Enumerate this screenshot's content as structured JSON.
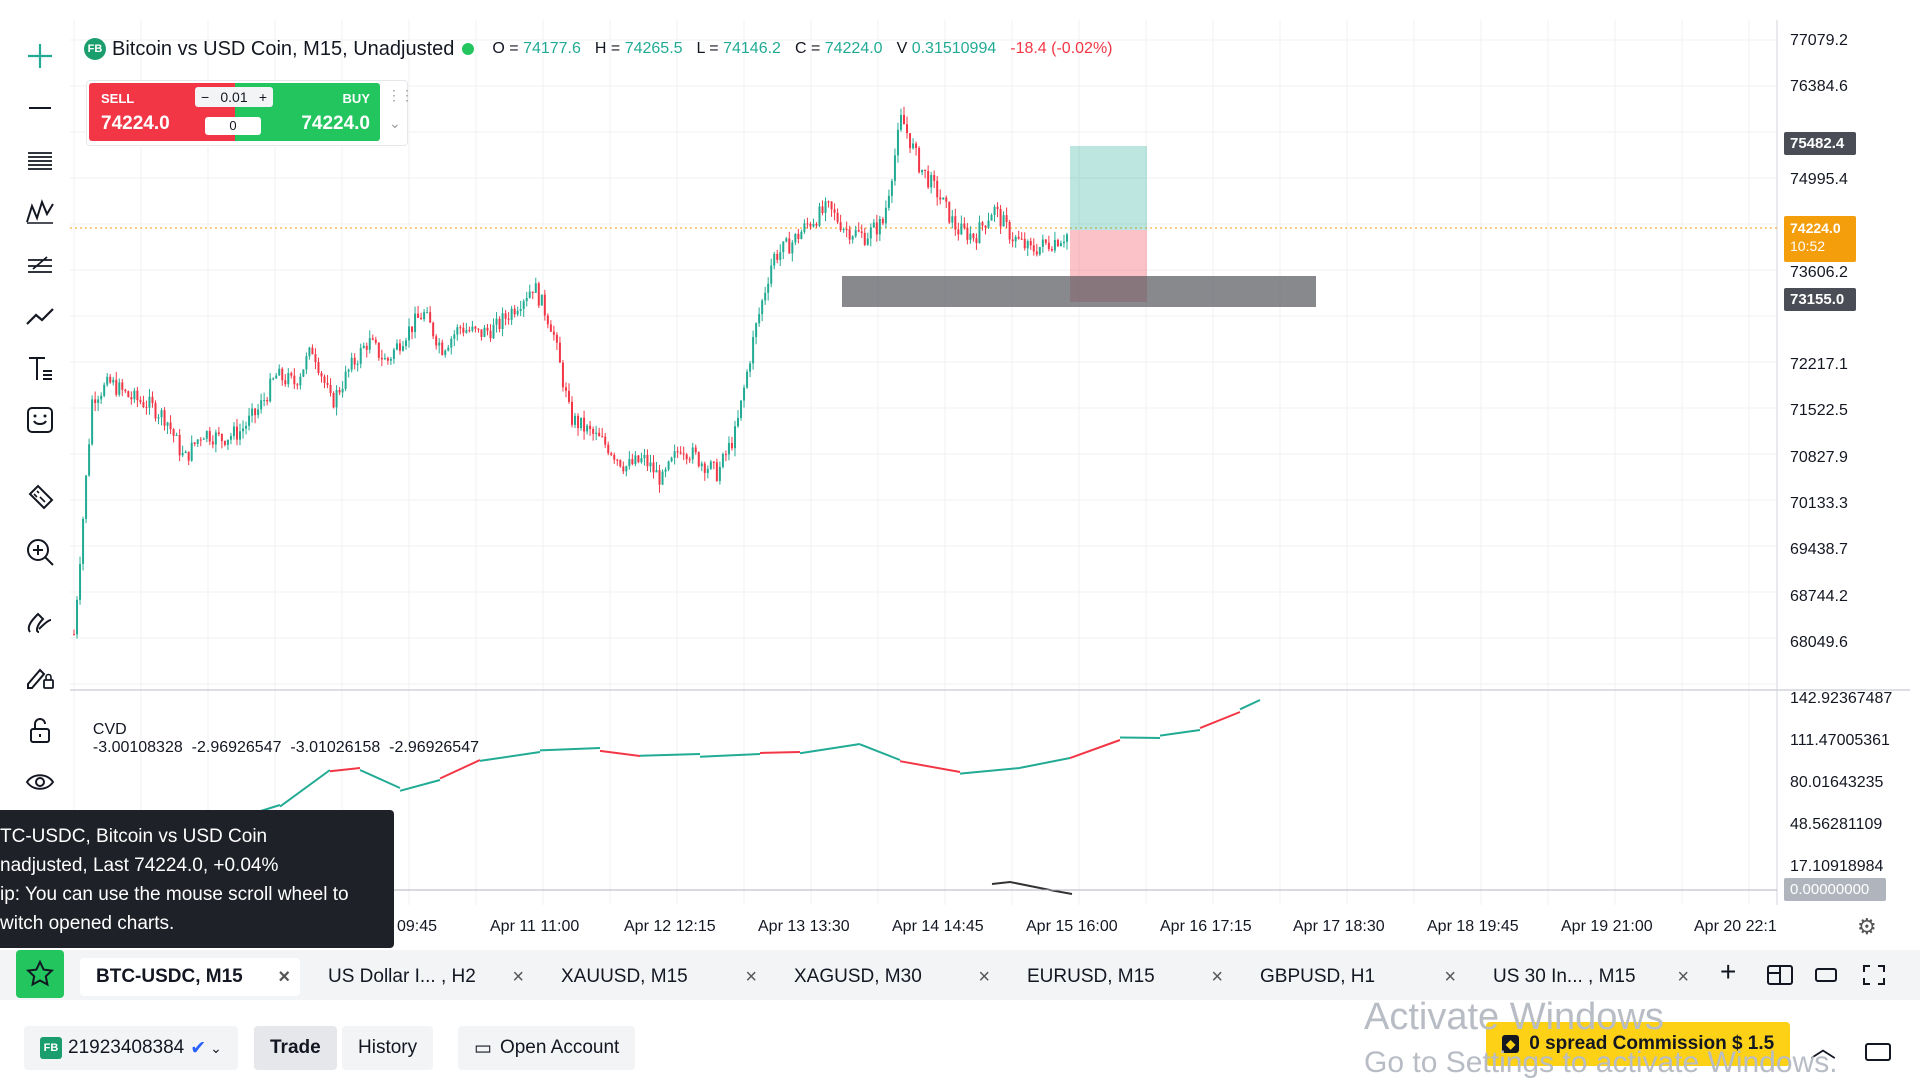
{
  "header": {
    "badge": "FB",
    "title": "Bitcoin vs USD Coin, M15, Unadjusted",
    "ohlc": [
      {
        "label": "O =",
        "value": "74177.6"
      },
      {
        "label": "H =",
        "value": "74265.5"
      },
      {
        "label": "L =",
        "value": "74146.2"
      },
      {
        "label": "C =",
        "value": "74224.0"
      },
      {
        "label": "V",
        "value": "0.31510994"
      }
    ],
    "change": "-18.4 (-0.02%)"
  },
  "trade": {
    "sell_label": "SELL",
    "sell_price": "74224.0",
    "buy_label": "BUY",
    "buy_price": "74224.0",
    "lot": "0.01",
    "lot_minus": "−",
    "lot_plus": "+",
    "spread_input": "0"
  },
  "price_axis": {
    "ticks": [
      "77079.2",
      "76384.6",
      "74995.4",
      "73606.2",
      "72217.1",
      "71522.5",
      "70827.9",
      "70133.3",
      "69438.7",
      "68744.2",
      "68049.6"
    ],
    "tag_top": "75482.4",
    "tag_current": "74224.0",
    "tag_countdown": "10:52",
    "tag_level": "73155.0"
  },
  "indicator": {
    "name": "CVD",
    "values": "-3.00108328  -2.96926547  -3.01026158  -2.96926547",
    "ticks": [
      "142.92367487",
      "111.47005361",
      "80.01643235",
      "48.56281109",
      "17.10918984"
    ],
    "tag_zero": "0.00000000"
  },
  "time_axis": [
    "09:45",
    "Apr 11 11:00",
    "Apr 12 12:15",
    "Apr 13 13:30",
    "Apr 14 14:45",
    "Apr 15 16:00",
    "Apr 16 17:15",
    "Apr 17 18:30",
    "Apr 18 19:45",
    "Apr 19 21:00",
    "Apr 20 22:1"
  ],
  "tooltip": {
    "line1": "TC-USDC, Bitcoin vs USD Coin",
    "line2": "nadjusted, Last 74224.0, +0.04%",
    "line3": "ip: You can use the mouse scroll wheel to",
    "line4": "witch opened charts."
  },
  "tabs": [
    {
      "label": "BTC-USDC, M15"
    },
    {
      "label": "US Dollar I... , H2"
    },
    {
      "label": "XAUUSD, M15"
    },
    {
      "label": "XAGUSD, M30"
    },
    {
      "label": "EURUSD, M15"
    },
    {
      "label": "GBPUSD, H1"
    },
    {
      "label": "US 30 In... , M15"
    }
  ],
  "footer": {
    "badge": "FB",
    "account": "21923408384",
    "trade": "Trade",
    "history": "History",
    "open_account": "Open Account",
    "promo": "0 spread Commission $ 1.5"
  },
  "watermark": {
    "line1": "Activate Windows",
    "line2": "Go to Settings to activate Windows."
  },
  "colors": {
    "up": "#22ab94",
    "down": "#f23645",
    "accent_green": "#22c55e",
    "current_price_tag": "#f59e0b",
    "tooltip_bg": "#1f2128"
  },
  "chart_data": {
    "type": "candlestick",
    "title": "Bitcoin vs USD Coin, M15, Unadjusted",
    "y_range": [
      67700,
      77300
    ],
    "close_path": [
      68500,
      71900,
      72100,
      71900,
      71800,
      71600,
      71000,
      71400,
      71300,
      71400,
      71700,
      72200,
      72100,
      72600,
      71800,
      72300,
      72700,
      72400,
      72800,
      73100,
      72600,
      72900,
      72800,
      72900,
      73200,
      73500,
      72900,
      71600,
      71400,
      71200,
      70900,
      71000,
      70700,
      71200,
      71000,
      70800,
      71400,
      72800,
      73900,
      74100,
      74400,
      74600,
      74300,
      74200,
      74400,
      75900,
      75200,
      74800,
      74300,
      74200,
      74600,
      74200,
      74000,
      74100,
      74224
    ],
    "position": {
      "entry": 74224.0,
      "take_profit": 75482.4,
      "stop_loss": 73155.0
    },
    "zone": [
      72980,
      73360
    ]
  }
}
